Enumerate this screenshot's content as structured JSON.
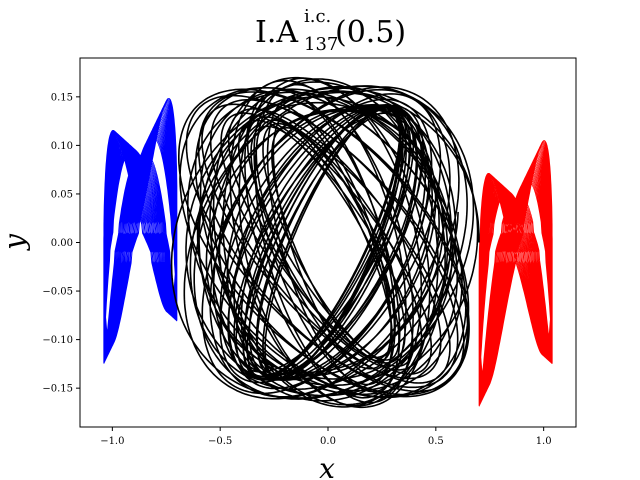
{
  "chart_data": {
    "type": "line",
    "title": {
      "main": "I.A",
      "superscript": "i.c.",
      "subscript": "137",
      "suffix": "(0.5)"
    },
    "xlabel": "x",
    "ylabel": "y",
    "xlim": [
      -1.15,
      1.15
    ],
    "ylim": [
      -0.19,
      0.19
    ],
    "xticks": [
      -1.0,
      -0.5,
      0.0,
      0.5,
      1.0
    ],
    "xtick_labels": [
      "−1.0",
      "−0.5",
      "0.0",
      "0.5",
      "1.0"
    ],
    "yticks": [
      -0.15,
      -0.1,
      -0.05,
      0.0,
      0.05,
      0.1,
      0.15
    ],
    "ytick_labels": [
      "−0.15",
      "−0.10",
      "−0.05",
      "0.00",
      "0.05",
      "0.10",
      "0.15"
    ],
    "grid": false,
    "series": [
      {
        "color": "#0000ff",
        "description_points": {
          "center_x": -0.86,
          "x_range": [
            -1.05,
            -0.65
          ],
          "y_range": [
            -0.105,
            0.148
          ]
        }
      },
      {
        "color": "#ff0000",
        "description_points": {
          "center_x": 0.86,
          "x_range": [
            0.6,
            1.05
          ],
          "y_range": [
            -0.148,
            0.105
          ]
        }
      },
      {
        "color": "#000000",
        "description_points": {
          "center_x": 0.0,
          "x_range": [
            -0.72,
            0.72
          ],
          "y_range": [
            -0.175,
            0.175
          ]
        }
      }
    ]
  }
}
